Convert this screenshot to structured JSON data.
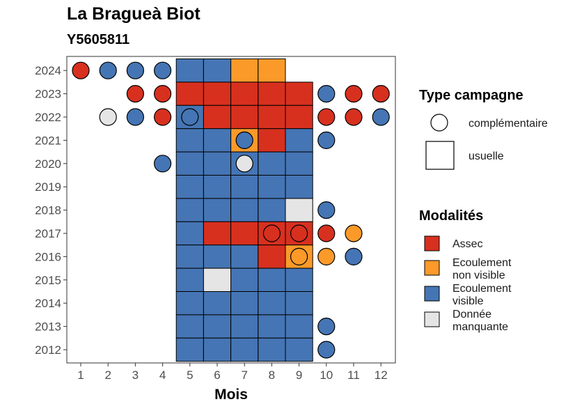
{
  "chart_data": {
    "type": "heatmap",
    "title": "La Bragueà Biot",
    "subtitle": "Y5605811",
    "xlabel": "Mois",
    "ylabel": "",
    "x_ticks": [
      "1",
      "2",
      "3",
      "4",
      "5",
      "6",
      "7",
      "8",
      "9",
      "10",
      "11",
      "12"
    ],
    "y_ticks": [
      "2012",
      "2013",
      "2014",
      "2015",
      "2016",
      "2017",
      "2018",
      "2019",
      "2020",
      "2021",
      "2022",
      "2023",
      "2024"
    ],
    "legend_shape": {
      "title": "Type campagne",
      "items": [
        {
          "key": "complementaire",
          "label": "complémentaire",
          "shape": "circle"
        },
        {
          "key": "usuelle",
          "label": "usuelle",
          "shape": "square"
        }
      ]
    },
    "legend_color": {
      "title": "Modalités",
      "items": [
        {
          "key": "assec",
          "label_lines": [
            "Assec"
          ],
          "color": "#d7301f"
        },
        {
          "key": "ecoulement_non_visible",
          "label_lines": [
            "Ecoulement",
            "non visible"
          ],
          "color": "#fb9a29"
        },
        {
          "key": "ecoulement_visible",
          "label_lines": [
            "Ecoulement",
            "visible"
          ],
          "color": "#4575b4"
        },
        {
          "key": "donnee_manquante",
          "label_lines": [
            "Donnée",
            "manquante"
          ],
          "color": "#e5e5e5"
        }
      ]
    },
    "usuelle": [
      {
        "year": 2024,
        "months": {
          "5": "ecoulement_visible",
          "6": "ecoulement_visible",
          "7": "ecoulement_non_visible",
          "8": "ecoulement_non_visible"
        }
      },
      {
        "year": 2023,
        "months": {
          "5": "assec",
          "6": "assec",
          "7": "assec",
          "8": "assec",
          "9": "assec"
        }
      },
      {
        "year": 2022,
        "months": {
          "5": "ecoulement_visible",
          "6": "assec",
          "7": "assec",
          "8": "assec",
          "9": "assec"
        }
      },
      {
        "year": 2021,
        "months": {
          "5": "ecoulement_visible",
          "6": "ecoulement_visible",
          "7": "ecoulement_non_visible",
          "8": "assec",
          "9": "ecoulement_visible"
        }
      },
      {
        "year": 2020,
        "months": {
          "5": "ecoulement_visible",
          "6": "ecoulement_visible",
          "7": "ecoulement_visible",
          "8": "ecoulement_visible",
          "9": "ecoulement_visible"
        }
      },
      {
        "year": 2019,
        "months": {
          "5": "ecoulement_visible",
          "6": "ecoulement_visible",
          "7": "ecoulement_visible",
          "8": "ecoulement_visible",
          "9": "ecoulement_visible"
        }
      },
      {
        "year": 2018,
        "months": {
          "5": "ecoulement_visible",
          "6": "ecoulement_visible",
          "7": "ecoulement_visible",
          "8": "ecoulement_visible",
          "9": "donnee_manquante"
        }
      },
      {
        "year": 2017,
        "months": {
          "5": "ecoulement_visible",
          "6": "assec",
          "7": "assec",
          "8": "assec",
          "9": "assec"
        }
      },
      {
        "year": 2016,
        "months": {
          "5": "ecoulement_visible",
          "6": "ecoulement_visible",
          "7": "ecoulement_visible",
          "8": "assec",
          "9": "ecoulement_non_visible"
        }
      },
      {
        "year": 2015,
        "months": {
          "5": "ecoulement_visible",
          "6": "donnee_manquante",
          "7": "ecoulement_visible",
          "8": "ecoulement_visible",
          "9": "ecoulement_visible"
        }
      },
      {
        "year": 2014,
        "months": {
          "5": "ecoulement_visible",
          "6": "ecoulement_visible",
          "7": "ecoulement_visible",
          "8": "ecoulement_visible",
          "9": "ecoulement_visible"
        }
      },
      {
        "year": 2013,
        "months": {
          "5": "ecoulement_visible",
          "6": "ecoulement_visible",
          "7": "ecoulement_visible",
          "8": "ecoulement_visible",
          "9": "ecoulement_visible"
        }
      },
      {
        "year": 2012,
        "months": {
          "5": "ecoulement_visible",
          "6": "ecoulement_visible",
          "7": "ecoulement_visible",
          "8": "ecoulement_visible",
          "9": "ecoulement_visible"
        }
      }
    ],
    "complementaire": [
      {
        "year": 2024,
        "month": 1,
        "status": "assec"
      },
      {
        "year": 2024,
        "month": 2,
        "status": "ecoulement_visible"
      },
      {
        "year": 2024,
        "month": 3,
        "status": "ecoulement_visible"
      },
      {
        "year": 2024,
        "month": 4,
        "status": "ecoulement_visible"
      },
      {
        "year": 2023,
        "month": 3,
        "status": "assec"
      },
      {
        "year": 2023,
        "month": 4,
        "status": "assec"
      },
      {
        "year": 2023,
        "month": 10,
        "status": "ecoulement_visible"
      },
      {
        "year": 2023,
        "month": 11,
        "status": "assec"
      },
      {
        "year": 2023,
        "month": 12,
        "status": "assec"
      },
      {
        "year": 2022,
        "month": 2,
        "status": "donnee_manquante"
      },
      {
        "year": 2022,
        "month": 3,
        "status": "ecoulement_visible"
      },
      {
        "year": 2022,
        "month": 4,
        "status": "assec"
      },
      {
        "year": 2022,
        "month": 5,
        "status": "ecoulement_visible"
      },
      {
        "year": 2022,
        "month": 10,
        "status": "assec"
      },
      {
        "year": 2022,
        "month": 11,
        "status": "assec"
      },
      {
        "year": 2022,
        "month": 12,
        "status": "ecoulement_visible"
      },
      {
        "year": 2021,
        "month": 7,
        "status": "ecoulement_visible"
      },
      {
        "year": 2021,
        "month": 10,
        "status": "ecoulement_visible"
      },
      {
        "year": 2020,
        "month": 4,
        "status": "ecoulement_visible"
      },
      {
        "year": 2020,
        "month": 7,
        "status": "donnee_manquante"
      },
      {
        "year": 2018,
        "month": 10,
        "status": "ecoulement_visible"
      },
      {
        "year": 2017,
        "month": 8,
        "status": "assec"
      },
      {
        "year": 2017,
        "month": 9,
        "status": "assec"
      },
      {
        "year": 2017,
        "month": 10,
        "status": "assec"
      },
      {
        "year": 2017,
        "month": 11,
        "status": "ecoulement_non_visible"
      },
      {
        "year": 2016,
        "month": 9,
        "status": "ecoulement_non_visible"
      },
      {
        "year": 2016,
        "month": 10,
        "status": "ecoulement_non_visible"
      },
      {
        "year": 2016,
        "month": 11,
        "status": "ecoulement_visible"
      },
      {
        "year": 2013,
        "month": 10,
        "status": "ecoulement_visible"
      },
      {
        "year": 2012,
        "month": 10,
        "status": "ecoulement_visible"
      }
    ]
  }
}
